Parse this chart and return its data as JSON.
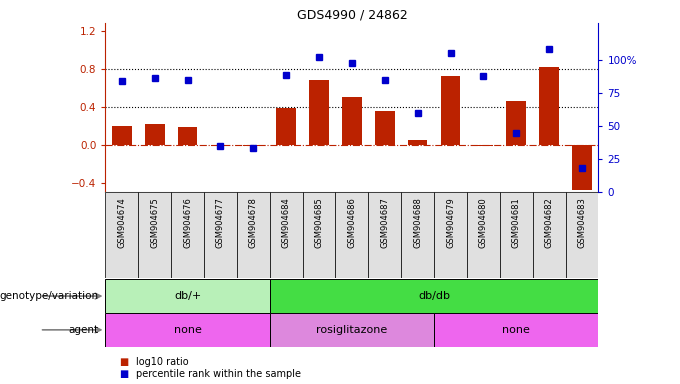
{
  "title": "GDS4990 / 24862",
  "samples": [
    "GSM904674",
    "GSM904675",
    "GSM904676",
    "GSM904677",
    "GSM904678",
    "GSM904684",
    "GSM904685",
    "GSM904686",
    "GSM904687",
    "GSM904688",
    "GSM904679",
    "GSM904680",
    "GSM904681",
    "GSM904682",
    "GSM904683"
  ],
  "log10_ratio": [
    0.2,
    0.22,
    0.18,
    -0.02,
    -0.02,
    0.39,
    0.68,
    0.5,
    0.35,
    0.05,
    0.72,
    -0.02,
    0.46,
    0.82,
    -0.48
  ],
  "percentile_rank": [
    84,
    86,
    85,
    35,
    33,
    89,
    102,
    98,
    85,
    60,
    105,
    88,
    45,
    108,
    18
  ],
  "bar_color": "#bb2200",
  "dot_color": "#0000cc",
  "dotted_line_y": [
    0.8,
    0.4
  ],
  "ylim_left": [
    -0.5,
    1.28
  ],
  "ylim_right": [
    0,
    128
  ],
  "yticks_left": [
    -0.4,
    0.0,
    0.4,
    0.8,
    1.2
  ],
  "ytick_labels_right": [
    "0",
    "25",
    "50",
    "75",
    "100%"
  ],
  "yticks_right": [
    0,
    25,
    50,
    75,
    100
  ],
  "genotype_groups": [
    {
      "label": "db/+",
      "start": 0,
      "end": 5,
      "color": "#b8f0b8"
    },
    {
      "label": "db/db",
      "start": 5,
      "end": 15,
      "color": "#44dd44"
    }
  ],
  "agent_groups": [
    {
      "label": "none",
      "start": 0,
      "end": 5,
      "color": "#ee66ee"
    },
    {
      "label": "rosiglitazone",
      "start": 5,
      "end": 10,
      "color": "#dd88dd"
    },
    {
      "label": "none",
      "start": 10,
      "end": 15,
      "color": "#ee66ee"
    }
  ],
  "legend_items": [
    {
      "color": "#bb2200",
      "label": "log10 ratio"
    },
    {
      "color": "#0000cc",
      "label": "percentile rank within the sample"
    }
  ]
}
